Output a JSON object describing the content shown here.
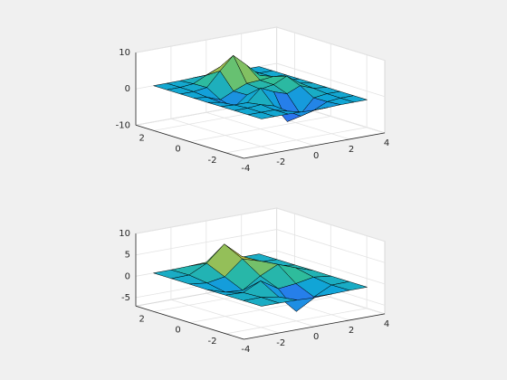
{
  "chart_data": [
    {
      "type": "surface",
      "x": [
        -3,
        -2.25,
        -1.5,
        -0.75,
        0,
        0.75,
        1.5,
        2.25,
        3
      ],
      "y": [
        -3,
        -2.25,
        -1.5,
        -0.75,
        0,
        0.75,
        1.5,
        2.25,
        3
      ],
      "z": [
        [
          0,
          0,
          0.01,
          -0.07,
          -0.25,
          -0.17,
          -0.03,
          0,
          0
        ],
        [
          0,
          0.01,
          0.01,
          -1.0,
          -3.02,
          -2.05,
          -0.35,
          -0.01,
          0
        ],
        [
          0,
          0.03,
          0.33,
          -0.68,
          -5.68,
          -4.32,
          -0.44,
          0.05,
          0
        ],
        [
          -0.01,
          -0.25,
          -0.28,
          3.09,
          1.4,
          0.21,
          1.78,
          0.41,
          0.01
        ],
        [
          -0.04,
          -0.69,
          -2.77,
          0.06,
          0.98,
          1.57,
          3.27,
          0.7,
          0.03
        ],
        [
          -0.01,
          -0.42,
          -1.76,
          -0.05,
          1.42,
          1.65,
          1.99,
          0.4,
          0.01
        ],
        [
          0,
          -0.03,
          0.48,
          4.38,
          8.0,
          4.72,
          1.19,
          0.12,
          0
        ],
        [
          0,
          0.02,
          0.36,
          2.07,
          3.65,
          2.09,
          0.41,
          0.03,
          0
        ],
        [
          0,
          0,
          0.03,
          0.17,
          0.3,
          0.17,
          0.03,
          0,
          0
        ]
      ],
      "xlim": [
        -4,
        4
      ],
      "ylim": [
        -3,
        3
      ],
      "zlim": [
        -10,
        10
      ],
      "xticks": [
        -4,
        -2,
        0,
        2,
        4
      ],
      "yticks": [
        -2,
        0,
        2
      ],
      "zticks": [
        -10,
        0,
        10
      ],
      "grid": true,
      "edge_color": "#000000",
      "colormap": [
        "#3e26a8",
        "#306ef3",
        "#10a5d7",
        "#37c28c",
        "#c8be3c",
        "#f9fb0e"
      ]
    },
    {
      "type": "surface",
      "x": [
        -3,
        -2,
        -1,
        0,
        1,
        2,
        3
      ],
      "y": [
        -3,
        -2,
        -1,
        0,
        1,
        2,
        3
      ],
      "z": [
        [
          0,
          0,
          -0.03,
          -0.25,
          -0.11,
          0,
          0
        ],
        [
          0,
          0.05,
          -0.6,
          -4.76,
          -2.1,
          -0.06,
          0
        ],
        [
          0,
          -0.13,
          1.85,
          -0.72,
          -0.27,
          0.5,
          0
        ],
        [
          -0.04,
          -1.33,
          -1.65,
          0.98,
          2.94,
          1.41,
          0.03
        ],
        [
          0,
          -0.48,
          0.23,
          3.69,
          2.43,
          0.58,
          0
        ],
        [
          0,
          0.08,
          2.1,
          5.86,
          2.21,
          0.13,
          0
        ],
        [
          0,
          0,
          0.11,
          0.3,
          0.11,
          0,
          0
        ]
      ],
      "xlim": [
        -4,
        4
      ],
      "ylim": [
        -3,
        3
      ],
      "zlim": [
        -7,
        10
      ],
      "xticks": [
        -4,
        -2,
        0,
        2,
        4
      ],
      "yticks": [
        -2,
        0,
        2
      ],
      "zticks": [
        -5,
        0,
        5,
        10
      ],
      "grid": true,
      "edge_color": "#000000",
      "colormap": [
        "#3e26a8",
        "#306ef3",
        "#10a5d7",
        "#37c28c",
        "#c8be3c",
        "#f9fb0e"
      ]
    }
  ]
}
